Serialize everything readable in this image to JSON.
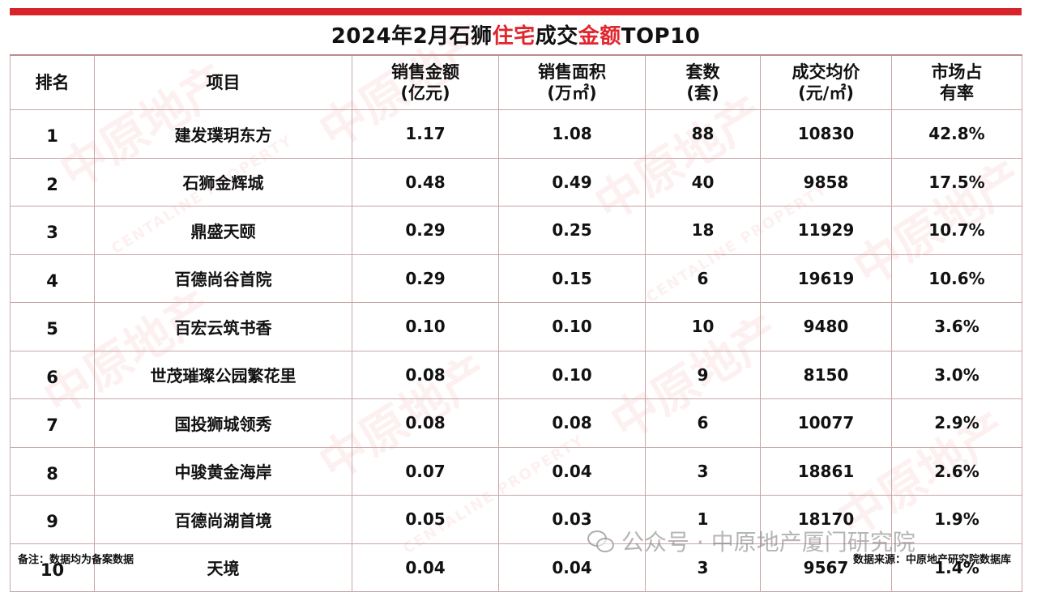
{
  "title": {
    "part1": "2024年2月石狮",
    "part2": "住宅",
    "part3": "成交",
    "part4": "金额",
    "part5": "TOP10"
  },
  "colors": {
    "accent": "#e1262d",
    "bar": "#d8232a",
    "border": "#c9a6a6"
  },
  "headers": {
    "rank": "排名",
    "project": "项目",
    "amount_l1": "销售金额",
    "amount_l2": "(亿元)",
    "area_l1": "销售面积",
    "area_l2": "(万㎡)",
    "units_l1": "套数",
    "units_l2": "(套)",
    "price_l1": "成交均价",
    "price_l2": "(元/㎡)",
    "share_l1": "市场占",
    "share_l2": "有率"
  },
  "rows": [
    {
      "rank": "1",
      "project": "建发璞玥东方",
      "amount": "1.17",
      "area": "1.08",
      "units": "88",
      "price": "10830",
      "share": "42.8%"
    },
    {
      "rank": "2",
      "project": "石狮金辉城",
      "amount": "0.48",
      "area": "0.49",
      "units": "40",
      "price": "9858",
      "share": "17.5%"
    },
    {
      "rank": "3",
      "project": "鼎盛天颐",
      "amount": "0.29",
      "area": "0.25",
      "units": "18",
      "price": "11929",
      "share": "10.7%"
    },
    {
      "rank": "4",
      "project": "百德尚谷首院",
      "amount": "0.29",
      "area": "0.15",
      "units": "6",
      "price": "19619",
      "share": "10.6%"
    },
    {
      "rank": "5",
      "project": "百宏云筑书香",
      "amount": "0.10",
      "area": "0.10",
      "units": "10",
      "price": "9480",
      "share": "3.6%"
    },
    {
      "rank": "6",
      "project": "世茂璀璨公园繁花里",
      "amount": "0.08",
      "area": "0.10",
      "units": "9",
      "price": "8150",
      "share": "3.0%"
    },
    {
      "rank": "7",
      "project": "国投狮城领秀",
      "amount": "0.08",
      "area": "0.08",
      "units": "6",
      "price": "10077",
      "share": "2.9%"
    },
    {
      "rank": "8",
      "project": "中骏黄金海岸",
      "amount": "0.07",
      "area": "0.04",
      "units": "3",
      "price": "18861",
      "share": "2.6%"
    },
    {
      "rank": "9",
      "project": "百德尚湖首境",
      "amount": "0.05",
      "area": "0.03",
      "units": "1",
      "price": "18170",
      "share": "1.9%"
    },
    {
      "rank": "10",
      "project": "天境",
      "amount": "0.04",
      "area": "0.04",
      "units": "3",
      "price": "9567",
      "share": "1.4%"
    }
  ],
  "footer": {
    "note": "备注：数据均为备案数据",
    "source": "数据来源：中原地产研究院数据库"
  },
  "watermark": {
    "brand": "公众号 · 中原地产厦门研究院",
    "icon": "wechat-icon",
    "bg_cn": "中原地产",
    "bg_en": "CENTALINE PROPERTY"
  }
}
